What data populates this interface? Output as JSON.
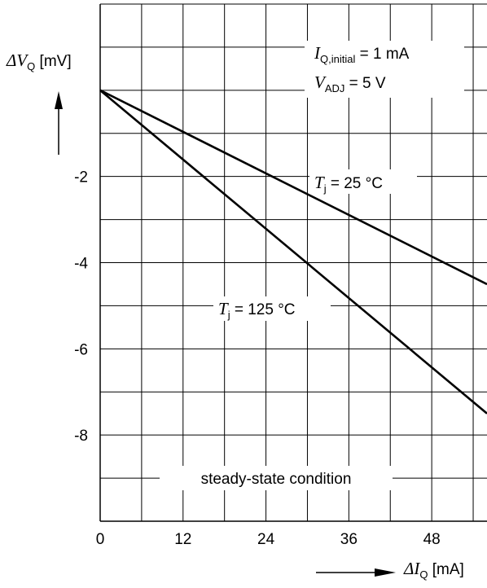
{
  "chart_data": {
    "type": "line",
    "x": [
      0,
      56
    ],
    "xlim": [
      0,
      56
    ],
    "ylim": [
      -10,
      2
    ],
    "x_ticks": [
      0,
      12,
      24,
      36,
      48
    ],
    "x_tick_labels": [
      "0",
      "12",
      "24",
      "36",
      "48"
    ],
    "y_ticks": [
      -2,
      -4,
      -6,
      -8
    ],
    "y_tick_labels": [
      "-2",
      "-4",
      "-6",
      "-8"
    ],
    "grid": true,
    "xlabel": {
      "base": "ΔI",
      "sub": "Q",
      "unit": " [mA]"
    },
    "ylabel": {
      "base": "ΔV",
      "sub": "Q",
      "unit": " [mV]"
    },
    "series": [
      {
        "name_base": "T",
        "name_sub": "j",
        "name_rest": " = 25 °C",
        "x": [
          0,
          56
        ],
        "values": [
          0,
          -4.5
        ]
      },
      {
        "name_base": "T",
        "name_sub": "j",
        "name_rest": " = 125 °C",
        "x": [
          0,
          56
        ],
        "values": [
          0,
          -7.5
        ]
      }
    ],
    "annotations": {
      "line1": {
        "base": "I",
        "sub": "Q,initial",
        "rest": " = 1 mA"
      },
      "line2": {
        "base": "V",
        "sub": "ADJ",
        "rest": " = 5 V"
      },
      "footer": "steady-state condition"
    }
  }
}
